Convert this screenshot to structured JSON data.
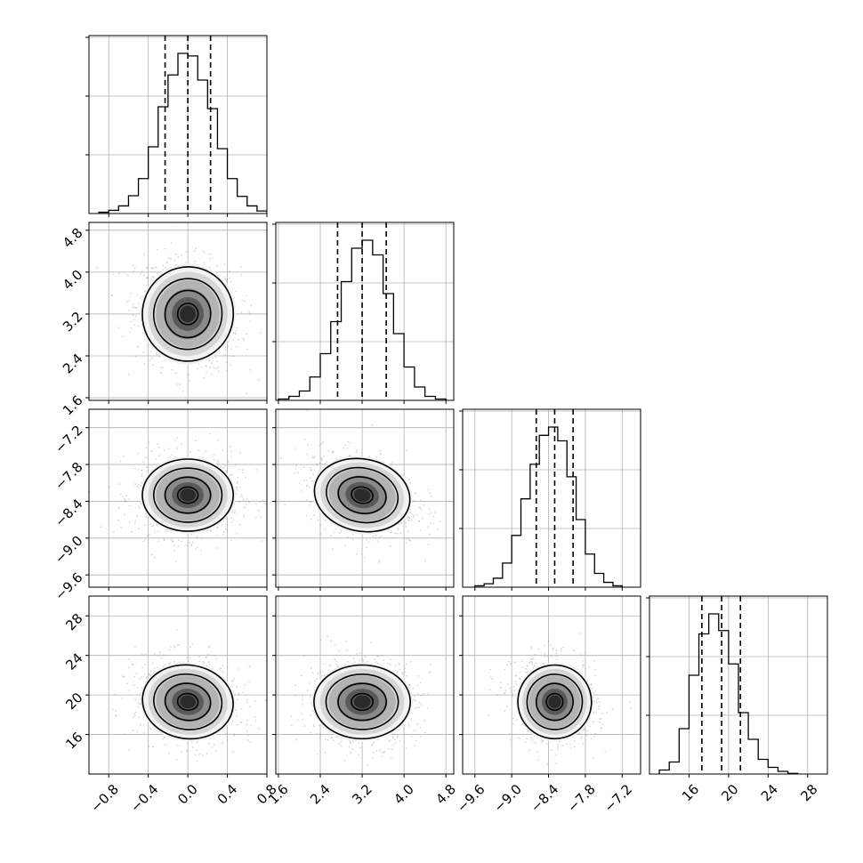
{
  "chart_data": {
    "type": "corner",
    "grid": true,
    "colors": {
      "frame": "#000000",
      "grid": "#b0b0b0",
      "hist_line": "#000000",
      "quantile_line": "#000000",
      "density_light": "#d9d9d9",
      "density_dark": "#000000"
    },
    "parameters": [
      {
        "range": [
          -1.0,
          0.8
        ],
        "ticks": [
          -0.8,
          -0.4,
          0.0,
          0.4,
          0.8
        ],
        "tick_labels": [
          "−0.8",
          "−0.4",
          "0.0",
          "0.4",
          "0.8"
        ],
        "mean": 0.0,
        "sd": 0.23,
        "quantiles": [
          -0.23,
          0.0,
          0.23
        ],
        "hist_edges": [
          -0.9,
          -0.8,
          -0.7,
          -0.6,
          -0.5,
          -0.4,
          -0.3,
          -0.2,
          -0.1,
          0.0,
          0.1,
          0.2,
          0.3,
          0.4,
          0.5,
          0.6,
          0.7,
          0.8
        ],
        "hist_counts": [
          2,
          5,
          12,
          28,
          55,
          105,
          168,
          218,
          252,
          248,
          210,
          165,
          102,
          55,
          27,
          12,
          4
        ]
      },
      {
        "range": [
          1.55,
          4.95
        ],
        "ticks": [
          1.6,
          2.4,
          3.2,
          4.0,
          4.8
        ],
        "tick_labels": [
          "1.6",
          "2.4",
          "3.2",
          "4.0",
          "4.8"
        ],
        "mean": 3.2,
        "sd": 0.46,
        "quantiles": [
          2.73,
          3.2,
          3.66
        ],
        "hist_edges": [
          1.6,
          1.8,
          2.0,
          2.2,
          2.4,
          2.6,
          2.8,
          3.0,
          3.2,
          3.4,
          3.6,
          3.8,
          4.0,
          4.2,
          4.4,
          4.6,
          4.8
        ],
        "hist_counts": [
          2,
          6,
          14,
          35,
          70,
          118,
          178,
          228,
          240,
          218,
          160,
          100,
          50,
          20,
          6,
          2
        ]
      },
      {
        "range": [
          -9.8,
          -6.9
        ],
        "ticks": [
          -9.6,
          -9.0,
          -8.4,
          -7.8,
          -7.2
        ],
        "tick_labels": [
          "−9.6",
          "−9.0",
          "−8.4",
          "−7.8",
          "−7.2"
        ],
        "mean": -8.3,
        "sd": 0.3,
        "quantiles": [
          -8.6,
          -8.3,
          -8.0
        ],
        "hist_edges": [
          -9.6,
          -9.45,
          -9.3,
          -9.15,
          -9.0,
          -8.85,
          -8.7,
          -8.55,
          -8.4,
          -8.25,
          -8.1,
          -7.95,
          -7.8,
          -7.65,
          -7.5,
          -7.35,
          -7.2
        ],
        "hist_counts": [
          2,
          5,
          13,
          35,
          75,
          128,
          178,
          220,
          232,
          212,
          160,
          98,
          48,
          20,
          7,
          2
        ]
      },
      {
        "range": [
          12.0,
          30.0
        ],
        "ticks": [
          16,
          20,
          24,
          28
        ],
        "tick_labels": [
          "16",
          "20",
          "24",
          "28"
        ],
        "mean": 19.3,
        "sd": 1.9,
        "quantiles": [
          17.3,
          19.3,
          21.2
        ],
        "hist_edges": [
          13,
          14,
          15,
          16,
          17,
          18,
          19,
          20,
          21,
          22,
          23,
          24,
          25,
          26,
          27
        ],
        "hist_counts": [
          6,
          18,
          68,
          148,
          210,
          240,
          215,
          165,
          92,
          52,
          22,
          10,
          4,
          1
        ]
      }
    ],
    "correlations": [
      [
        1.0,
        -0.15,
        0.0,
        -0.18
      ],
      [
        -0.15,
        1.0,
        -0.3,
        0.0
      ],
      [
        0.0,
        -0.3,
        1.0,
        -0.1
      ],
      [
        -0.18,
        0.0,
        -0.1,
        1.0
      ]
    ],
    "contour_levels_sigma": [
      0.5,
      1.0,
      1.5,
      2.0
    ]
  }
}
